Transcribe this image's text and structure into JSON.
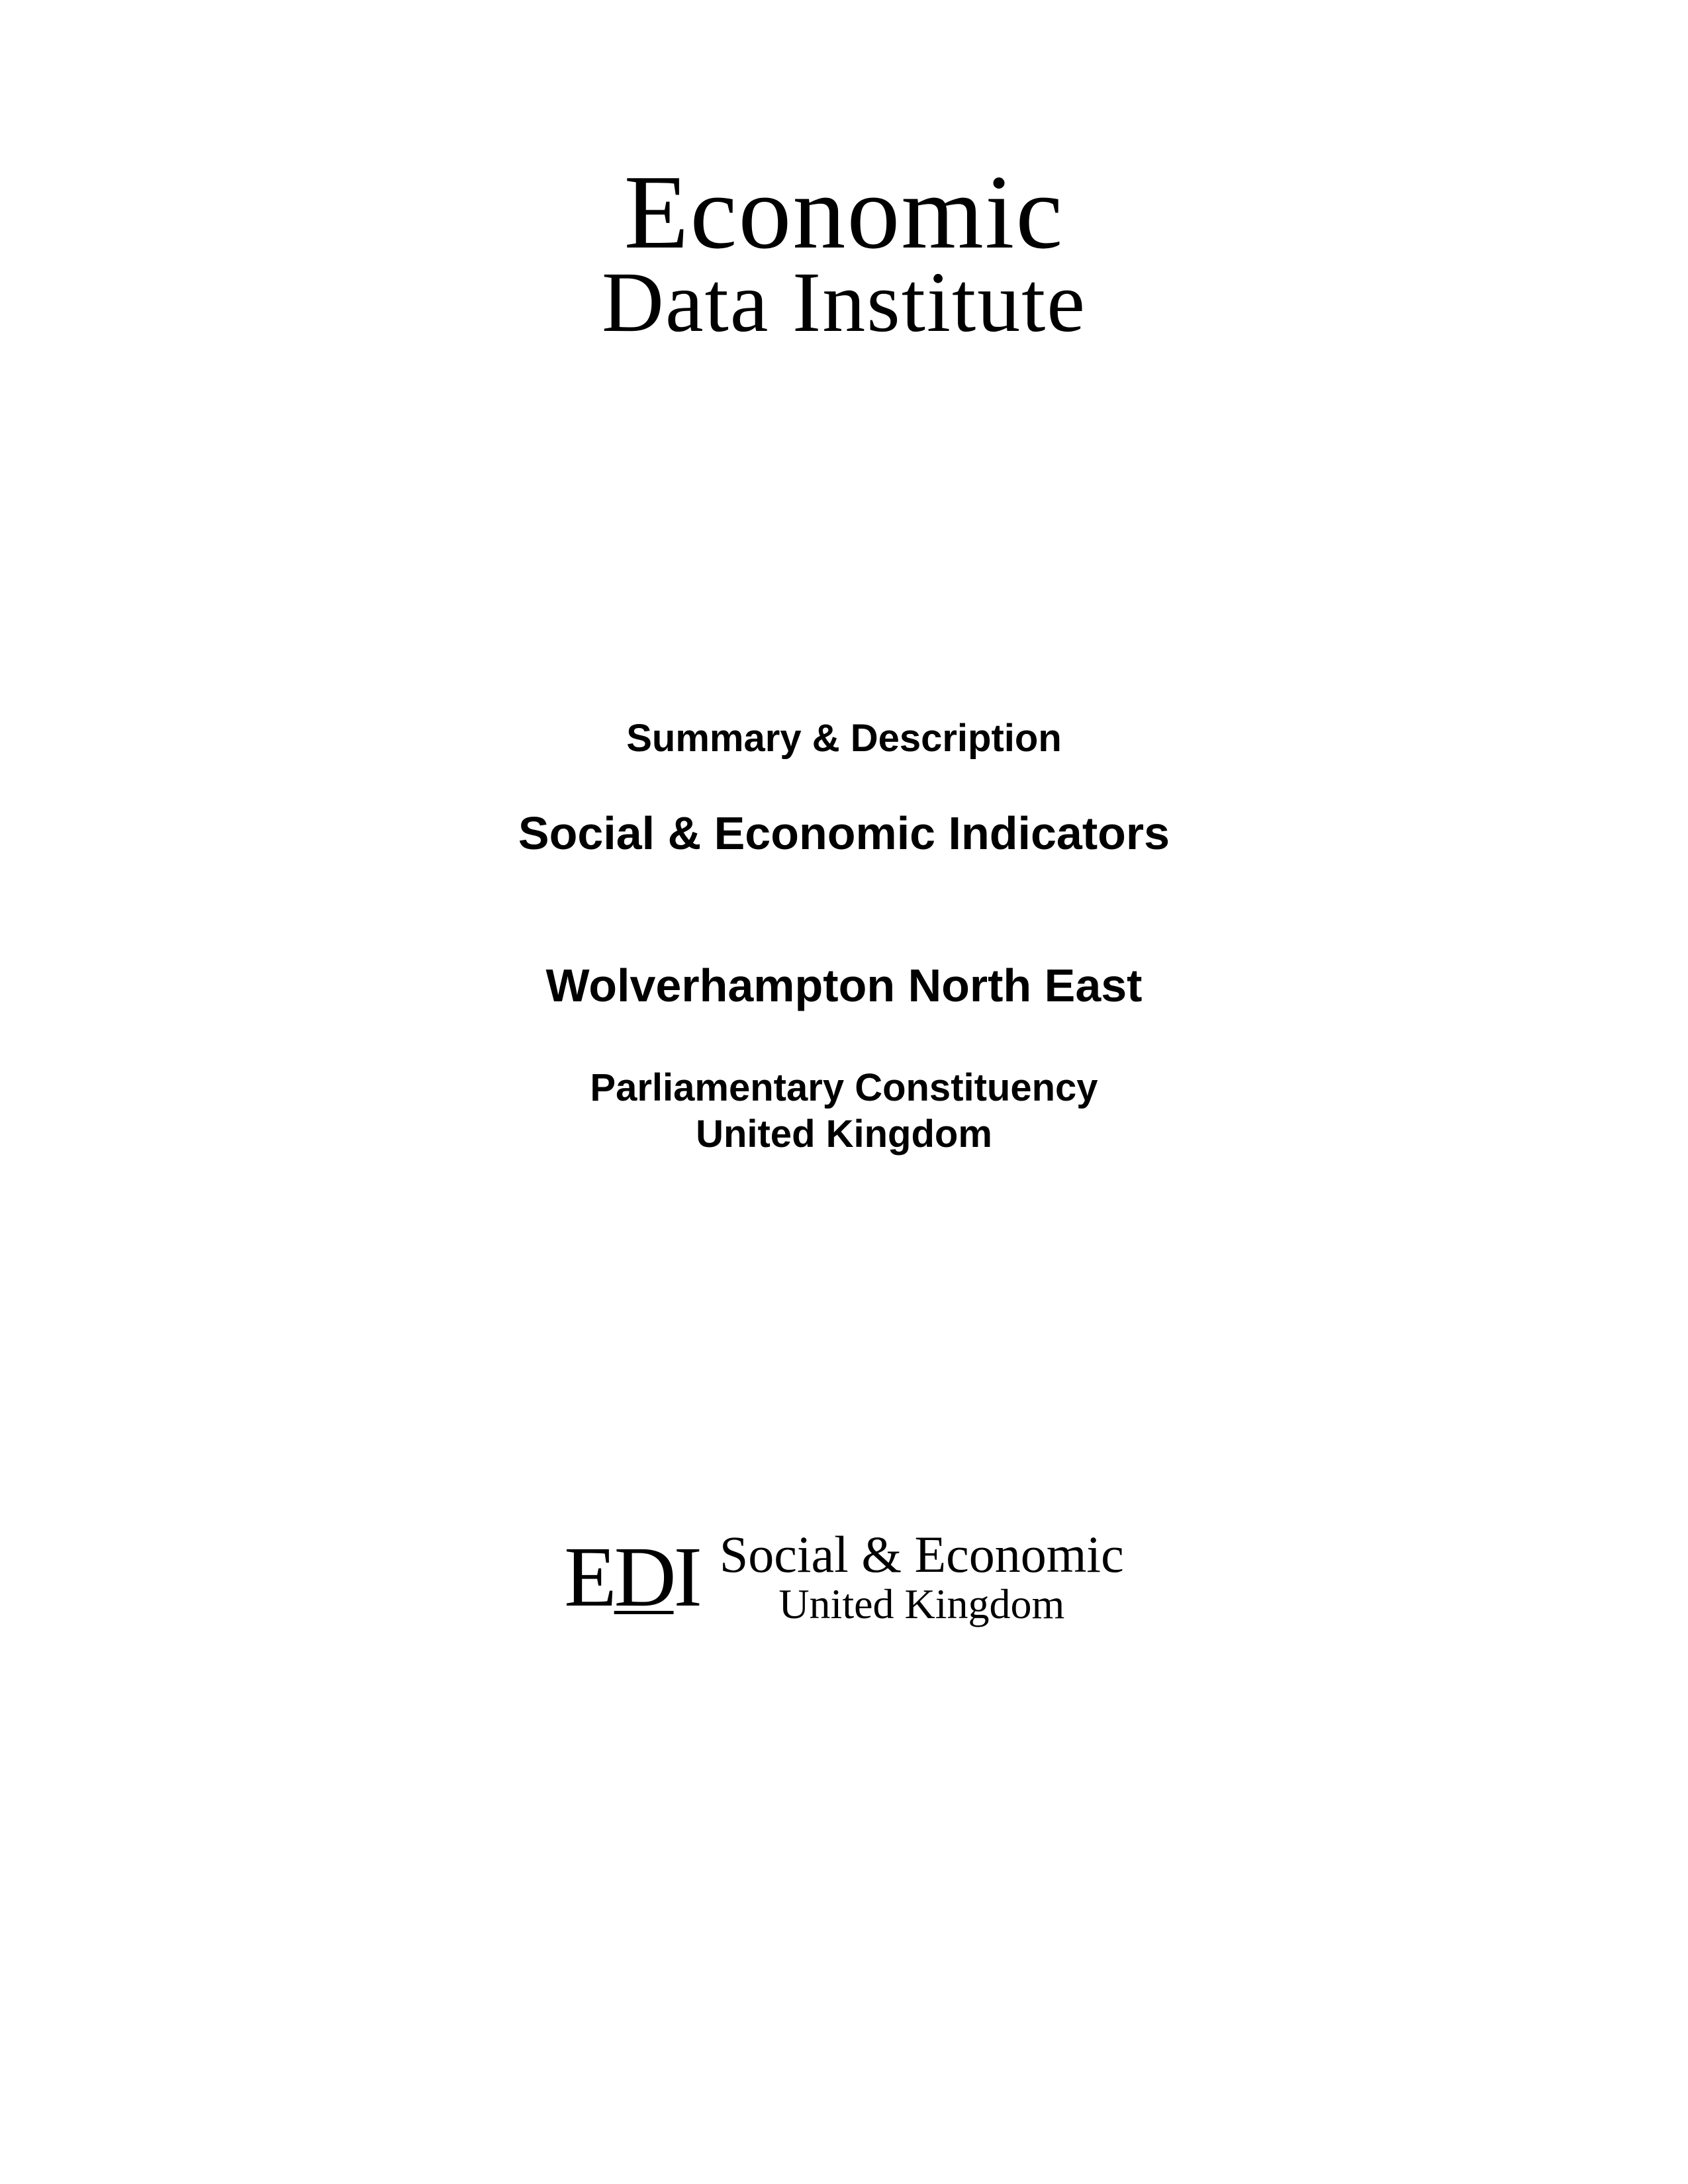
{
  "main_logo": {
    "line1": "Economic",
    "line2": "Data Institute"
  },
  "content": {
    "summary_label": "Summary & Description",
    "main_title": "Social & Economic Indicators",
    "location": "Wolverhampton North East",
    "subtitle_line1": "Parliamentary Constituency",
    "subtitle_line2": "United Kingdom"
  },
  "footer_logo": {
    "mark_e": "E",
    "mark_d": "D",
    "mark_i": "I",
    "line1": "Social & Economic",
    "line2": "United Kingdom"
  },
  "styling": {
    "background_color": "#ffffff",
    "text_color": "#000000",
    "main_logo_fontsize_line1": 160,
    "main_logo_fontsize_line2": 130,
    "summary_fontsize": 58,
    "title_fontsize": 70,
    "subtitle_fontsize": 58,
    "footer_mark_fontsize": 130,
    "footer_line1_fontsize": 78,
    "footer_line2_fontsize": 64,
    "serif_font": "Georgia, Times New Roman",
    "sans_font": "Arial, Helvetica"
  }
}
